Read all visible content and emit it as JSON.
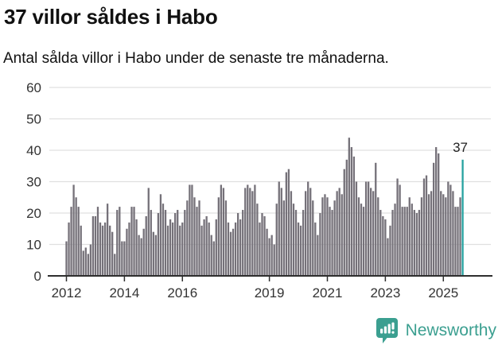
{
  "header": {
    "title": "37 villor såldes i Habo",
    "subtitle": "Antal sålda villor i Habo under de senaste tre månaderna."
  },
  "chart_data": {
    "type": "bar",
    "title": "37 villor såldes i Habo",
    "xlabel": "",
    "ylabel": "",
    "ylim": [
      0,
      60
    ],
    "yticks": [
      0,
      10,
      20,
      30,
      40,
      50,
      60
    ],
    "xtick_years": [
      2012,
      2014,
      2016,
      2019,
      2021,
      2023,
      2025
    ],
    "start_month": "2012-01",
    "end_month": "2025-09",
    "grid": true,
    "bar_color": "#757179",
    "highlight": {
      "month_index": 164,
      "color": "#26a2a0"
    },
    "annotation": {
      "text": "37",
      "month_index": 164,
      "value": 37
    },
    "values": [
      11,
      17,
      22,
      29,
      25,
      22,
      16,
      8,
      9,
      7,
      10,
      19,
      19,
      22,
      17,
      16,
      17,
      23,
      16,
      14,
      7,
      21,
      22,
      11,
      11,
      15,
      17,
      22,
      22,
      18,
      13,
      12,
      15,
      19,
      28,
      21,
      14,
      13,
      20,
      26,
      23,
      21,
      16,
      18,
      17,
      20,
      21,
      16,
      17,
      21,
      24,
      29,
      29,
      25,
      22,
      24,
      16,
      18,
      19,
      17,
      13,
      11,
      18,
      25,
      29,
      28,
      24,
      17,
      14,
      15,
      17,
      20,
      18,
      21,
      28,
      29,
      28,
      27,
      29,
      23,
      17,
      20,
      19,
      15,
      12,
      13,
      10,
      23,
      30,
      28,
      24,
      33,
      34,
      27,
      23,
      21,
      17,
      16,
      21,
      27,
      30,
      28,
      24,
      17,
      13,
      20,
      25,
      26,
      25,
      22,
      21,
      24,
      27,
      28,
      26,
      34,
      37,
      44,
      41,
      38,
      30,
      25,
      23,
      22,
      30,
      30,
      28,
      27,
      36,
      25,
      21,
      19,
      18,
      12,
      16,
      21,
      23,
      31,
      29,
      22,
      22,
      22,
      25,
      23,
      21,
      20,
      21,
      25,
      31,
      32,
      26,
      27,
      36,
      41,
      39,
      27,
      26,
      25,
      30,
      29,
      27,
      22,
      22,
      25,
      37
    ]
  },
  "footer": {
    "brand": "Newsworthy"
  },
  "colors": {
    "bar_gray": "#757179",
    "accent_teal": "#26a2a0",
    "logo_teal": "#3b9f90",
    "grid_line": "#e0e0e0",
    "axis_line": "#2e2e2e",
    "tick_label": "#333333",
    "annotation_text": "#222222"
  }
}
